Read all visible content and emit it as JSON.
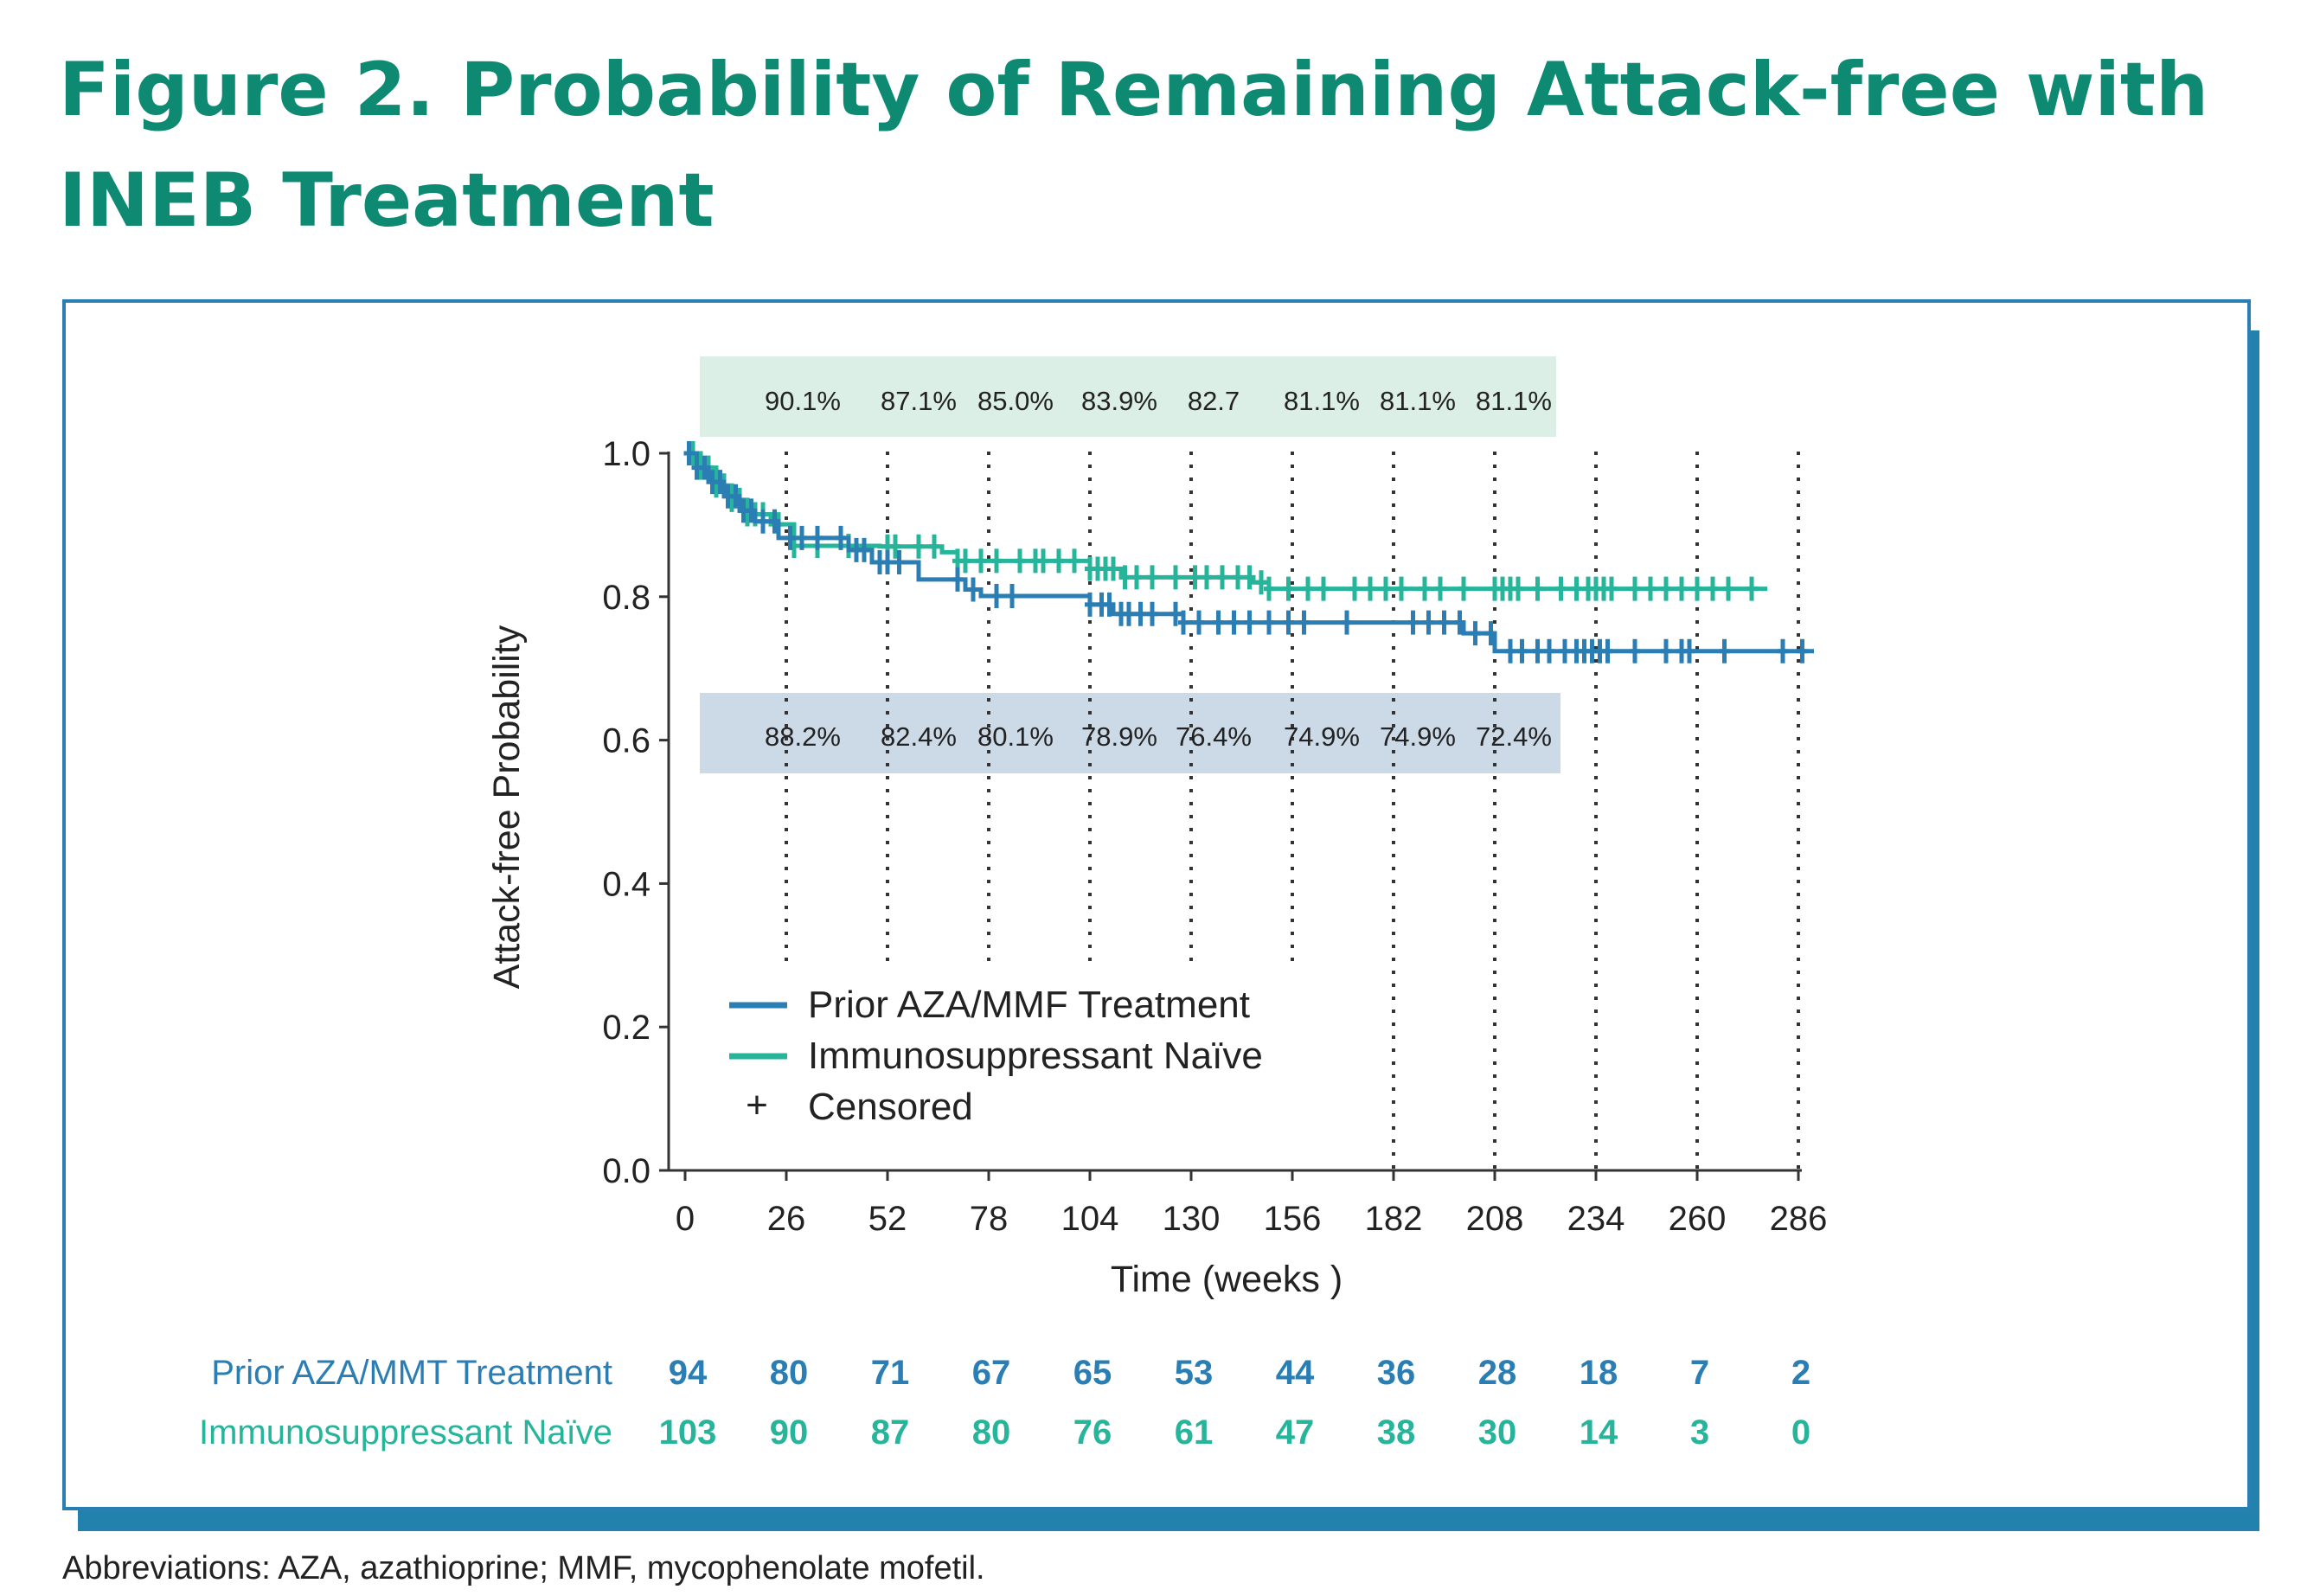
{
  "figure_title": "Figure 2. Probability of Remaining Attack-free with INEB Treatment",
  "footnote": "Abbreviations: AZA, azathioprine; MMF, mycophenolate mofetil.",
  "colors": {
    "title": "#0e8a73",
    "prior": "#2a7eb4",
    "naive": "#26b49a",
    "naive_box": "#dcefe6",
    "prior_box": "#ccd9e6",
    "panel_border": "#2a7eb4",
    "shadow": "#2381ad"
  },
  "chart_data": {
    "type": "line",
    "xlabel": "Time (weeks )",
    "ylabel": "Attack-free Probability",
    "xlim": [
      0,
      286
    ],
    "ylim": [
      0,
      1.0
    ],
    "xticks": [
      0,
      26,
      52,
      78,
      104,
      130,
      156,
      182,
      208,
      234,
      260,
      286
    ],
    "yticks": [
      "0.0",
      "0.2",
      "0.4",
      "0.6",
      "0.8",
      "1.0"
    ],
    "reference_lines_x": [
      26,
      52,
      78,
      104,
      130,
      156,
      182,
      208,
      234,
      260,
      286
    ],
    "legend": {
      "position": "bottom-left",
      "entries": [
        "Prior AZA/MMF Treatment",
        "Immunosuppressant Naïve",
        "Censored"
      ],
      "censored_symbol": "+"
    },
    "series": [
      {
        "name": "Prior AZA/MMF Treatment",
        "color": "#2a7eb4",
        "step_x": [
          0,
          3,
          6,
          10,
          14,
          18,
          24,
          42,
          48,
          60,
          72,
          76,
          104,
          110,
          128,
          200,
          208,
          290
        ],
        "step_y": [
          1.0,
          0.98,
          0.96,
          0.94,
          0.92,
          0.905,
          0.882,
          0.865,
          0.848,
          0.824,
          0.81,
          0.801,
          0.789,
          0.776,
          0.764,
          0.749,
          0.724,
          0.724
        ],
        "censor_x": [
          1,
          3,
          5,
          7,
          9,
          11,
          13,
          15,
          17,
          20,
          23,
          27,
          30,
          34,
          40,
          44,
          46,
          50,
          52,
          55,
          70,
          74,
          80,
          84,
          104,
          107,
          109,
          112,
          114,
          117,
          120,
          126,
          128,
          132,
          137,
          141,
          145,
          150,
          155,
          159,
          170,
          187,
          191,
          195,
          199,
          203,
          207,
          212,
          215,
          219,
          222,
          226,
          229,
          231,
          233,
          235,
          237,
          244,
          252,
          256,
          258,
          267,
          282,
          287
        ]
      },
      {
        "name": "Immunosuppressant Naïve",
        "color": "#26b49a",
        "step_x": [
          0,
          4,
          8,
          12,
          16,
          22,
          28,
          50,
          66,
          70,
          104,
          112,
          146,
          150,
          278
        ],
        "step_y": [
          1.0,
          0.98,
          0.955,
          0.935,
          0.915,
          0.901,
          0.871,
          0.87,
          0.862,
          0.85,
          0.839,
          0.827,
          0.82,
          0.811,
          0.811
        ],
        "censor_x": [
          2,
          4,
          6,
          8,
          10,
          12,
          14,
          16,
          18,
          20,
          24,
          28,
          34,
          42,
          52,
          54,
          60,
          64,
          70,
          72,
          76,
          80,
          86,
          90,
          92,
          96,
          100,
          104,
          106,
          108,
          110,
          113,
          116,
          120,
          126,
          131,
          134,
          138,
          142,
          145,
          148,
          150,
          155,
          160,
          164,
          172,
          176,
          180,
          184,
          190,
          194,
          200,
          208,
          210,
          212,
          214,
          219,
          225,
          229,
          232,
          234,
          236,
          238,
          244,
          248,
          252,
          256,
          260,
          264,
          268,
          274
        ]
      }
    ],
    "annotations_naive": [
      "90.1%",
      "87.1%",
      "85.0%",
      "83.9%",
      "82.7",
      "81.1%",
      "81.1%",
      "81.1%"
    ],
    "annotations_prior": [
      "88.2%",
      "82.4%",
      "80.1%",
      "78.9%",
      "76.4%",
      "74.9%",
      "74.9%",
      "72.4%"
    ],
    "risk_table": {
      "rows": [
        {
          "label": "Prior AZA/MMT Treatment",
          "values": [
            "94",
            "80",
            "71",
            "67",
            "65",
            "53",
            "44",
            "36",
            "28",
            "18",
            "7",
            "2"
          ]
        },
        {
          "label": "Immunosuppressant Naïve",
          "values": [
            "103",
            "90",
            "87",
            "80",
            "76",
            "61",
            "47",
            "38",
            "30",
            "14",
            "3",
            "0"
          ]
        }
      ]
    }
  }
}
